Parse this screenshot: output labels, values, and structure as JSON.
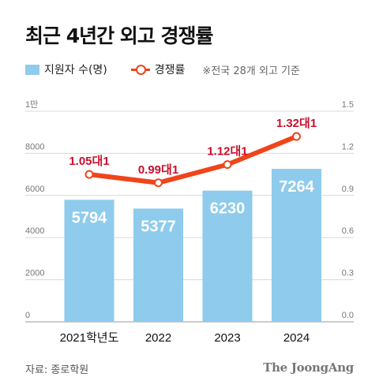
{
  "title": "최근 4년간 외고 경쟁률",
  "legend": {
    "bar_label": "지원자 수(명)",
    "line_label": "경쟁률",
    "note": "※전국 28개 외고 기준"
  },
  "source": "자료: 종로학원",
  "brand": "The JoongAng",
  "chart_data": {
    "type": "bar+line",
    "categories": [
      "2021학년도",
      "2022",
      "2023",
      "2024"
    ],
    "series": [
      {
        "name": "지원자 수(명)",
        "type": "bar",
        "axis": "left",
        "values": [
          5794,
          5377,
          6230,
          7264
        ],
        "color": "#8ecbec"
      },
      {
        "name": "경쟁률",
        "type": "line",
        "axis": "right",
        "values": [
          1.05,
          0.99,
          1.12,
          1.32
        ],
        "labels": [
          "1.05대1",
          "0.99대1",
          "1.12대1",
          "1.32대1"
        ],
        "color": "#f0441a"
      }
    ],
    "left_axis": {
      "ylim": [
        0,
        10000
      ],
      "ticks": [
        0,
        2000,
        4000,
        6000,
        8000,
        10000
      ],
      "tick_labels": [
        "0",
        "2000",
        "4000",
        "6000",
        "8000",
        "1만"
      ]
    },
    "right_axis": {
      "ylim": [
        0,
        1.5
      ],
      "ticks": [
        0,
        0.3,
        0.6,
        0.9,
        1.2,
        1.5
      ],
      "tick_labels": [
        "0.0",
        "0.3",
        "0.6",
        "0.9",
        "1.2",
        "1.5"
      ]
    },
    "grid": true,
    "legend_position": "top-left",
    "label_color": "#c8102e"
  }
}
